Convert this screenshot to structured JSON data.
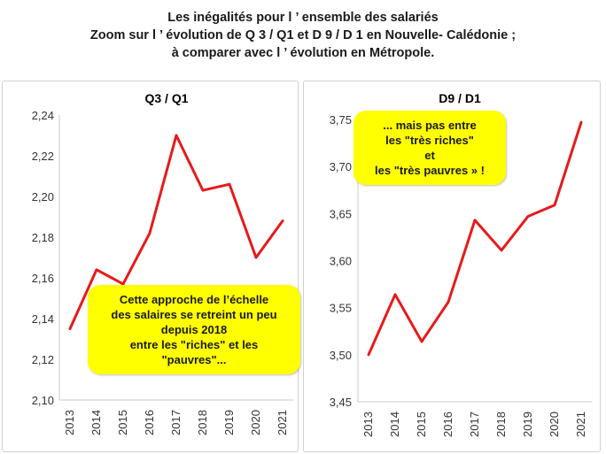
{
  "title_lines": [
    "Les inégalités pour l ’ ensemble des salariés",
    "Zoom sur l ’  évolution de Q 3 / Q1 et D 9 / D 1 en Nouvelle- Calédonie ;",
    "à comparer avec l ’ évolution en Métropole."
  ],
  "chart_data": [
    {
      "type": "line",
      "title": "Q3 / Q1",
      "categories": [
        "2013",
        "2014",
        "2015",
        "2016",
        "2017",
        "2018",
        "2019",
        "2020",
        "2021"
      ],
      "values": [
        2.135,
        2.164,
        2.157,
        2.182,
        2.23,
        2.203,
        2.206,
        2.17,
        2.188
      ],
      "ylim": [
        2.1,
        2.24
      ],
      "yticks": [
        "2,10",
        "2,12",
        "2,14",
        "2,16",
        "2,18",
        "2,20",
        "2,22",
        "2,24"
      ],
      "line_color": "#e8191a",
      "grid": false,
      "annotation": [
        "Cette approche de l’échelle",
        "des salaires se retreint un peu",
        "depuis 2018",
        "entre les \"riches\" et les",
        "\"pauvres\"..."
      ]
    },
    {
      "type": "line",
      "title": "D9 / D1",
      "categories": [
        "2013",
        "2014",
        "2015",
        "2016",
        "2017",
        "2018",
        "2019",
        "2020",
        "2021"
      ],
      "values": [
        3.5,
        3.564,
        3.514,
        3.556,
        3.643,
        3.611,
        3.647,
        3.659,
        3.747
      ],
      "ylim": [
        3.45,
        3.75
      ],
      "yticks": [
        "3,45",
        "3,50",
        "3,55",
        "3,60",
        "3,65",
        "3,70",
        "3,75"
      ],
      "line_color": "#e8191a",
      "grid": false,
      "annotation": [
        "... mais pas entre",
        "les \"très riches\"",
        "et",
        "les \"très pauvres »  !"
      ]
    }
  ]
}
